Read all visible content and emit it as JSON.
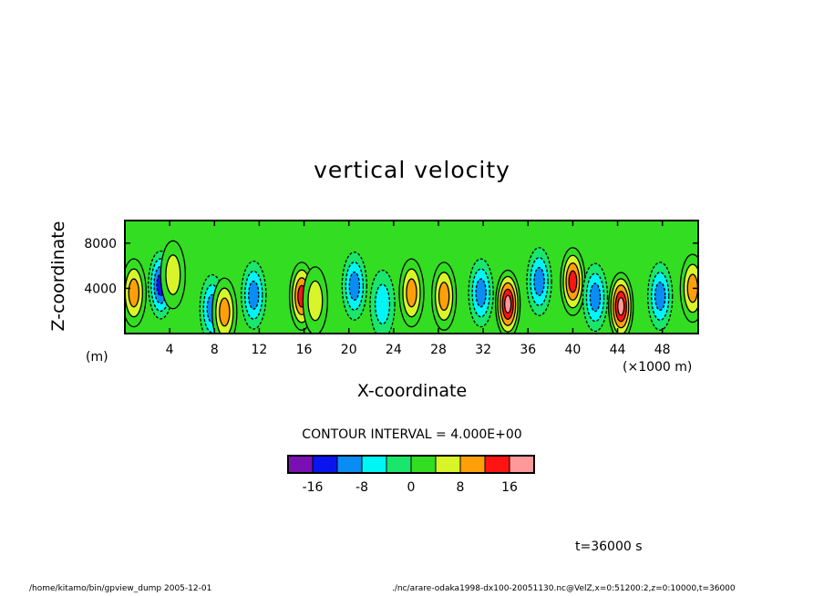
{
  "chart_data": {
    "type": "heatmap",
    "title": "vertical velocity",
    "xlabel": "X-coordinate",
    "ylabel": "Z-coordinate",
    "x_unit": "(×1000 m)",
    "y_unit": "(m)",
    "x_ticks": [
      "4",
      "8",
      "12",
      "16",
      "20",
      "24",
      "28",
      "32",
      "36",
      "40",
      "44",
      "48"
    ],
    "y_ticks": [
      "4000",
      "8000"
    ],
    "xlim": [
      0,
      51200
    ],
    "ylim": [
      0,
      10000
    ],
    "contour_interval_text": "CONTOUR INTERVAL = 4.000E+00",
    "colorbar": {
      "levels": [
        -20,
        -16,
        -12,
        -8,
        -4,
        0,
        4,
        8,
        12,
        16,
        20
      ],
      "tick_labels": [
        "-16",
        "-8",
        "0",
        "8",
        "16"
      ],
      "colors": [
        "#7a10b4",
        "#0a14f0",
        "#0a8cf5",
        "#00f5f5",
        "#19e66b",
        "#33dd22",
        "#d8f52a",
        "#ffa00a",
        "#ff1414",
        "#ff9898"
      ]
    },
    "background_color": "#33dd22",
    "features": [
      {
        "kind": "updraft",
        "x": 800,
        "z": 3600,
        "peak": 10
      },
      {
        "kind": "downdraft",
        "x": 3200,
        "z": 4300,
        "peak": -12
      },
      {
        "kind": "updraft",
        "x": 4300,
        "z": 5200,
        "peak": 6
      },
      {
        "kind": "downdraft",
        "x": 7800,
        "z": 2200,
        "peak": -8
      },
      {
        "kind": "updraft",
        "x": 8900,
        "z": 1900,
        "peak": 8
      },
      {
        "kind": "downdraft",
        "x": 11500,
        "z": 3400,
        "peak": -10
      },
      {
        "kind": "updraft",
        "x": 15800,
        "z": 3300,
        "peak": 14
      },
      {
        "kind": "updraft",
        "x": 17000,
        "z": 2900,
        "peak": 6
      },
      {
        "kind": "downdraft",
        "x": 20500,
        "z": 4200,
        "peak": -10
      },
      {
        "kind": "downdraft",
        "x": 23000,
        "z": 2600,
        "peak": -6
      },
      {
        "kind": "updraft",
        "x": 25600,
        "z": 3600,
        "peak": 8
      },
      {
        "kind": "updraft",
        "x": 28500,
        "z": 3300,
        "peak": 8
      },
      {
        "kind": "downdraft",
        "x": 31800,
        "z": 3600,
        "peak": -10
      },
      {
        "kind": "updraft",
        "x": 34200,
        "z": 2600,
        "peak": 16
      },
      {
        "kind": "downdraft",
        "x": 37000,
        "z": 4600,
        "peak": -10
      },
      {
        "kind": "updraft",
        "x": 40000,
        "z": 4600,
        "peak": 14
      },
      {
        "kind": "downdraft",
        "x": 42000,
        "z": 3200,
        "peak": -8
      },
      {
        "kind": "updraft",
        "x": 44300,
        "z": 2400,
        "peak": 18
      },
      {
        "kind": "downdraft",
        "x": 47800,
        "z": 3300,
        "peak": -8
      },
      {
        "kind": "updraft",
        "x": 50700,
        "z": 4000,
        "peak": 10
      }
    ]
  },
  "time_label": "t=36000 s",
  "footer": {
    "left": "/home/kitamo/bin/gpview_dump  2005-12-01",
    "right": "./nc/arare-odaka1998-dx100-20051130.nc@VelZ,x=0:51200:2,z=0:10000,t=36000"
  }
}
